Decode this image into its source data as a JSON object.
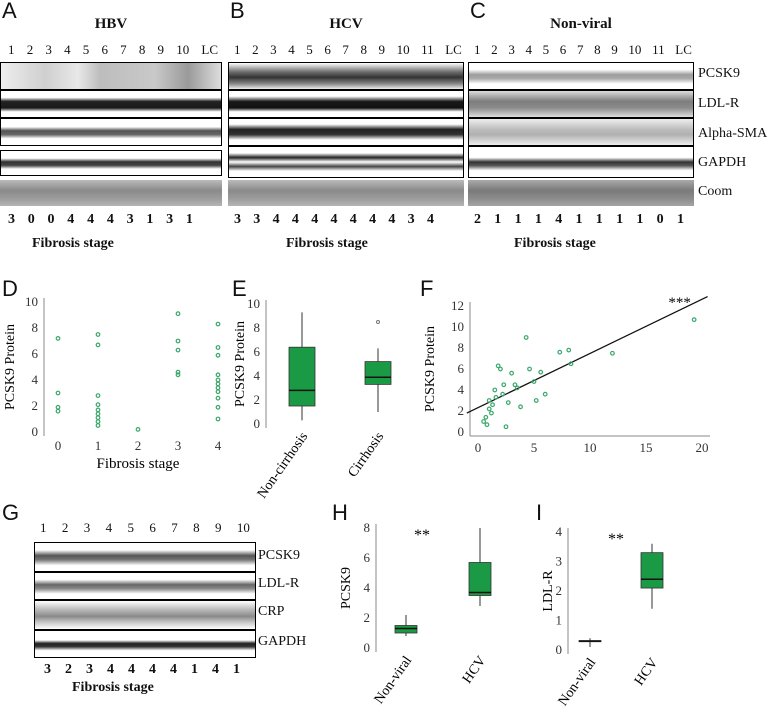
{
  "panel_letters": [
    "A",
    "B",
    "C",
    "D",
    "E",
    "F",
    "G",
    "H",
    "I"
  ],
  "blots": [
    {
      "title": "HBV",
      "lanes": [
        "1",
        "2",
        "3",
        "4",
        "5",
        "6",
        "7",
        "8",
        "9",
        "10",
        "LC"
      ],
      "stages": [
        "3",
        "0",
        "0",
        "4",
        "4",
        "4",
        "3",
        "1",
        "3",
        "1"
      ],
      "stage_label": "Fibrosis stage"
    },
    {
      "title": "HCV",
      "lanes": [
        "1",
        "2",
        "3",
        "4",
        "5",
        "6",
        "7",
        "8",
        "9",
        "10",
        "11",
        "LC"
      ],
      "stages": [
        "3",
        "3",
        "4",
        "4",
        "4",
        "4",
        "4",
        "4",
        "4",
        "3",
        "4"
      ],
      "stage_label": "Fibrosis stage"
    },
    {
      "title": "Non-viral",
      "lanes": [
        "1",
        "2",
        "3",
        "4",
        "5",
        "6",
        "7",
        "8",
        "9",
        "10",
        "11",
        "LC"
      ],
      "stages": [
        "2",
        "1",
        "1",
        "1",
        "4",
        "1",
        "1",
        "1",
        "1",
        "0",
        "1"
      ],
      "stage_label": "Fibrosis stage"
    }
  ],
  "row_labels": [
    "PCSK9",
    "LDL-R",
    "Alpha-SMA",
    "GAPDH",
    "Coom"
  ],
  "blot_g": {
    "lanes": [
      "1",
      "2",
      "3",
      "4",
      "5",
      "6",
      "7",
      "8",
      "9",
      "10"
    ],
    "row_labels": [
      "PCSK9",
      "LDL-R",
      "CRP",
      "GAPDH"
    ],
    "stages": [
      "3",
      "2",
      "3",
      "4",
      "4",
      "4",
      "4",
      "1",
      "4",
      "1"
    ],
    "stage_label": "Fibrosis stage"
  },
  "chart_data": [
    {
      "panel": "D",
      "type": "scatter",
      "xlabel": "Fibrosis stage",
      "ylabel": "PCSK9 Protein",
      "xticks": [
        "0",
        "1",
        "2",
        "3",
        "4"
      ],
      "yticks": [
        "0",
        "2",
        "4",
        "6",
        "8",
        "10"
      ],
      "ylim": [
        0,
        10
      ],
      "points": [
        [
          0,
          7.2
        ],
        [
          0,
          3
        ],
        [
          0,
          1.9
        ],
        [
          0,
          1.6
        ],
        [
          1,
          7.5
        ],
        [
          1,
          6.7
        ],
        [
          1,
          2.8
        ],
        [
          1,
          2.1
        ],
        [
          1,
          1.7
        ],
        [
          1,
          1.4
        ],
        [
          1,
          1.1
        ],
        [
          1,
          0.8
        ],
        [
          1,
          0.5
        ],
        [
          2,
          0.2
        ],
        [
          3,
          9.1
        ],
        [
          3,
          7.0
        ],
        [
          3,
          6.3
        ],
        [
          3,
          4.6
        ],
        [
          3,
          4.4
        ],
        [
          4,
          8.3
        ],
        [
          4,
          6.5
        ],
        [
          4,
          5.9
        ],
        [
          4,
          4.4
        ],
        [
          4,
          4.0
        ],
        [
          4,
          3.7
        ],
        [
          4,
          3.4
        ],
        [
          4,
          3.1
        ],
        [
          4,
          2.6
        ],
        [
          4,
          1.9
        ],
        [
          4,
          1.0
        ]
      ]
    },
    {
      "panel": "E",
      "type": "box",
      "ylabel": "PCSK9 Protein",
      "categories": [
        "Non-cirrhosis",
        "Cirrhosis"
      ],
      "yticks": [
        "0",
        "2",
        "4",
        "6",
        "8",
        "10"
      ],
      "ylim": [
        0,
        10
      ],
      "boxes": [
        {
          "min": 0.3,
          "q1": 1.5,
          "median": 2.8,
          "q3": 6.4,
          "max": 9.3,
          "outliers": []
        },
        {
          "min": 1.0,
          "q1": 3.3,
          "median": 3.9,
          "q3": 5.2,
          "max": 6.3,
          "outliers": [
            8.5
          ]
        }
      ]
    },
    {
      "panel": "F",
      "type": "scatter",
      "xlabel": "LDL-R Protein",
      "ylabel": "PCSK9 Protein",
      "xticks": [
        "0",
        "5",
        "10",
        "15",
        "20"
      ],
      "yticks": [
        "0",
        "2",
        "4",
        "6",
        "8",
        "10",
        "12"
      ],
      "xlim": [
        0,
        20
      ],
      "ylim": [
        0,
        12
      ],
      "annotation": "***",
      "fit": [
        [
          -1,
          1.8
        ],
        [
          20.5,
          12.9
        ]
      ],
      "points": [
        [
          0.5,
          1.0
        ],
        [
          0.7,
          1.4
        ],
        [
          0.8,
          0.7
        ],
        [
          1.0,
          2.2
        ],
        [
          1.0,
          3.0
        ],
        [
          1.2,
          1.8
        ],
        [
          1.3,
          2.6
        ],
        [
          1.5,
          4.0
        ],
        [
          1.6,
          3.3
        ],
        [
          1.8,
          6.3
        ],
        [
          2.0,
          6.0
        ],
        [
          2.2,
          3.6
        ],
        [
          2.3,
          4.5
        ],
        [
          2.5,
          0.5
        ],
        [
          2.7,
          2.8
        ],
        [
          3.0,
          5.6
        ],
        [
          3.3,
          4.5
        ],
        [
          3.5,
          4.2
        ],
        [
          3.8,
          2.4
        ],
        [
          4.3,
          9.0
        ],
        [
          4.6,
          6.0
        ],
        [
          5.0,
          4.8
        ],
        [
          5.2,
          3.0
        ],
        [
          5.6,
          5.7
        ],
        [
          6.0,
          3.6
        ],
        [
          7.3,
          7.6
        ],
        [
          8.1,
          7.8
        ],
        [
          8.3,
          6.5
        ],
        [
          12.0,
          7.5
        ],
        [
          19.3,
          10.7
        ]
      ]
    },
    {
      "panel": "H",
      "type": "box",
      "ylabel": "PCSK9",
      "categories": [
        "Non-viral",
        "HCV"
      ],
      "yticks": [
        "0",
        "2",
        "4",
        "6",
        "8"
      ],
      "ylim": [
        0,
        8
      ],
      "annotation": "**",
      "boxes": [
        {
          "min": 0.8,
          "q1": 1.0,
          "median": 1.3,
          "q3": 1.5,
          "max": 2.2,
          "outliers": []
        },
        {
          "min": 2.8,
          "q1": 3.5,
          "median": 3.7,
          "q3": 5.7,
          "max": 8.0,
          "outliers": []
        }
      ]
    },
    {
      "panel": "I",
      "type": "box",
      "ylabel": "LDL-R",
      "categories": [
        "Non-viral",
        "HCV"
      ],
      "yticks": [
        "0",
        "1",
        "2",
        "3",
        "4"
      ],
      "ylim": [
        0,
        4
      ],
      "annotation": "**",
      "boxes": [
        {
          "min": 0.1,
          "q1": 0.28,
          "median": 0.3,
          "q3": 0.32,
          "max": 0.4,
          "outliers": []
        },
        {
          "min": 1.4,
          "q1": 2.1,
          "median": 2.4,
          "q3": 3.3,
          "max": 3.6,
          "outliers": []
        }
      ]
    }
  ],
  "colors": {
    "marker": "#3aa86b",
    "box_fill": "#1a9a45",
    "box_stroke": "#333333"
  }
}
